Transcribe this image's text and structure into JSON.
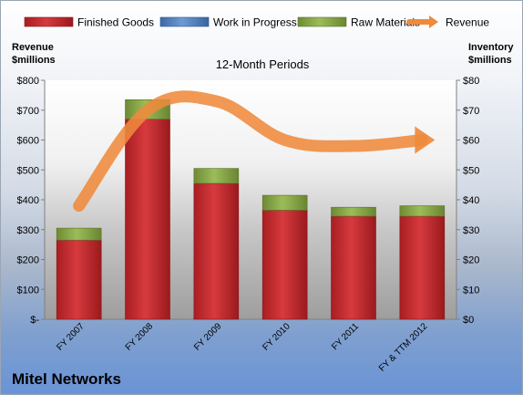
{
  "company_name": "Mitel Networks",
  "chart_data": {
    "type": "bar",
    "title": "12-Month Periods",
    "categories": [
      "FY 2007",
      "FY 2008",
      "FY 2009",
      "FY 2010",
      "FY 2011",
      "FY & TTM 2012"
    ],
    "y_left": {
      "label_line1": "Revenue",
      "label_line2": "$millions",
      "ylim": [
        0,
        800
      ],
      "ticks": [
        "$-",
        "$100",
        "$200",
        "$300",
        "$400",
        "$500",
        "$600",
        "$700",
        "$800"
      ]
    },
    "y_right": {
      "label_line1": "Inventory",
      "label_line2": "$millions",
      "ylim": [
        0,
        80
      ],
      "ticks": [
        "$0",
        "$10",
        "$20",
        "$30",
        "$40",
        "$50",
        "$60",
        "$70",
        "$80"
      ]
    },
    "series": [
      {
        "name": "Finished Goods",
        "type": "stacked-bar",
        "axis": "right",
        "color": "#c0272d",
        "values": [
          26.5,
          67,
          45.5,
          36.5,
          34.5,
          34.5
        ]
      },
      {
        "name": "Work in Progress",
        "type": "stacked-bar",
        "axis": "right",
        "color": "#4f81bd",
        "values": [
          0,
          0,
          0,
          0,
          0,
          0
        ]
      },
      {
        "name": "Raw Materials",
        "type": "stacked-bar",
        "axis": "right",
        "color": "#8aa84a",
        "values": [
          4,
          6.5,
          5,
          5,
          3,
          3.5
        ]
      },
      {
        "name": "Revenue",
        "type": "line",
        "axis": "left",
        "color": "#ee8a3c",
        "values": [
          380,
          700,
          730,
          600,
          580,
          600
        ]
      }
    ],
    "grid": false,
    "legend_position": "top"
  }
}
